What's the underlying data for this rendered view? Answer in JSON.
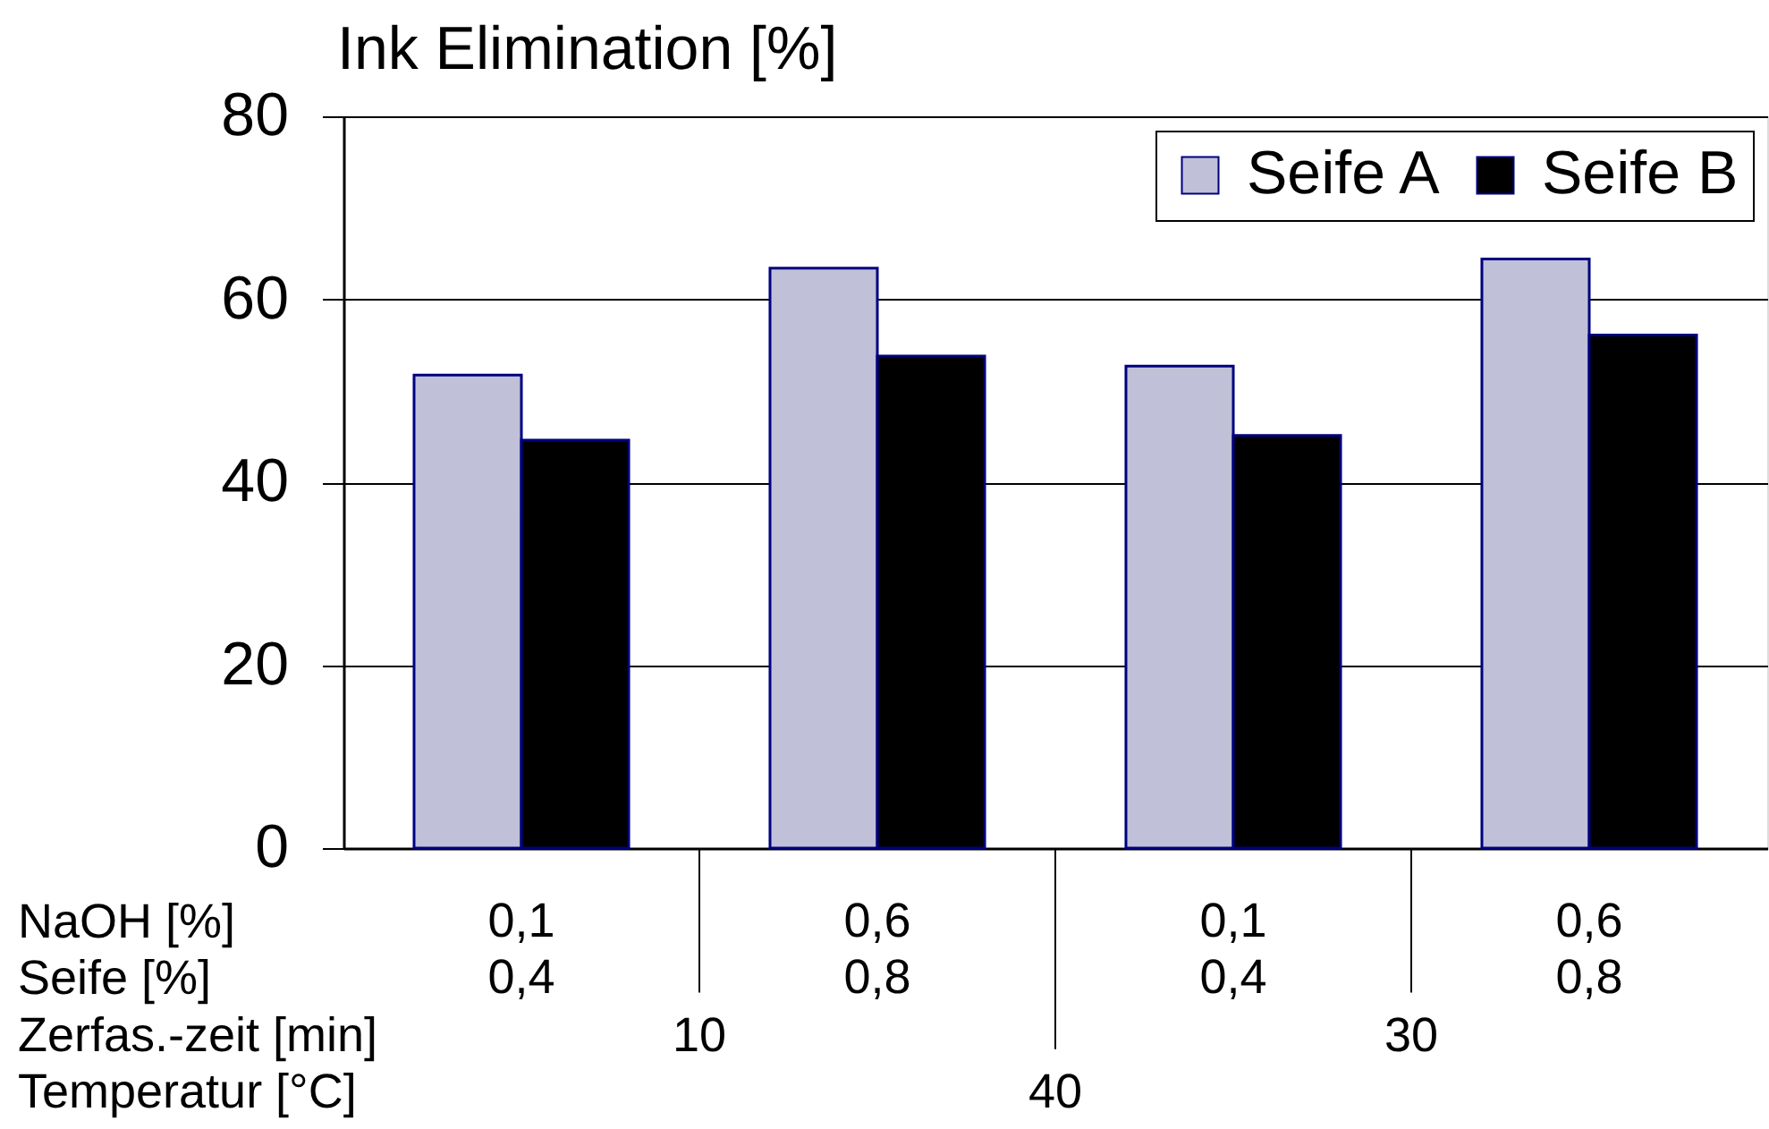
{
  "chart_data": {
    "type": "bar",
    "ylabel": "Ink Elimination [%]",
    "categories": [
      "0,1\n0,4",
      "0,6\n0,8",
      "0,1\n0,4",
      "0,6\n0,8"
    ],
    "series": [
      {
        "name": "Seife A",
        "color": "#c0c0d8",
        "values": [
          51.7,
          63.4,
          52.7,
          64.4
        ]
      },
      {
        "name": "Seife B",
        "color": "#000000",
        "values": [
          44.6,
          53.8,
          45.1,
          56.1
        ]
      }
    ],
    "ylim": [
      0,
      80
    ],
    "yticks": [
      0,
      20,
      40,
      60,
      80
    ],
    "grid": "y",
    "legend": "top right",
    "annotations": [
      "NaOH [%]",
      "Seife [%]",
      "Zerfas.-zeit [min]",
      "Temperatur [°C]",
      "10",
      "30",
      "40"
    ]
  }
}
